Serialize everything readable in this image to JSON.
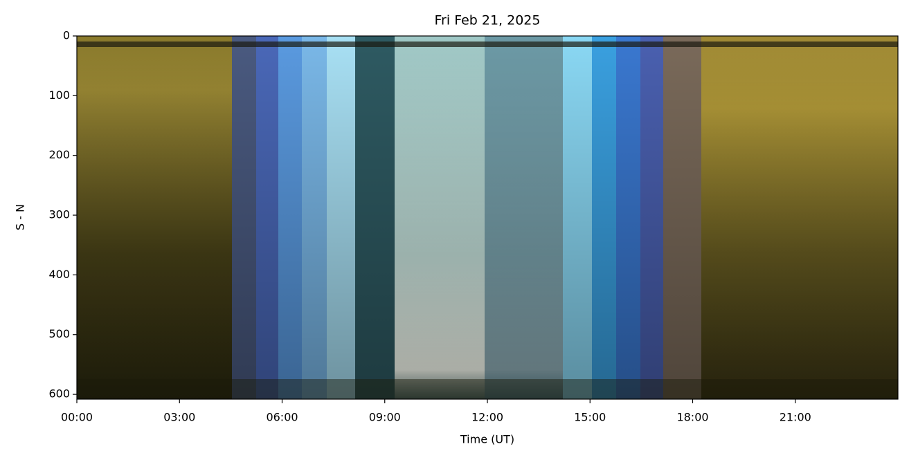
{
  "chart_data": {
    "type": "image",
    "title": "Fri Feb 21, 2025",
    "xlabel": "Time (UT)",
    "ylabel": "S - N",
    "xlim": [
      0,
      24
    ],
    "xticks": [
      {
        "value": 0,
        "label": "00:00"
      },
      {
        "value": 3,
        "label": "03:00"
      },
      {
        "value": 6,
        "label": "06:00"
      },
      {
        "value": 9,
        "label": "09:00"
      },
      {
        "value": 12,
        "label": "12:00"
      },
      {
        "value": 15,
        "label": "15:00"
      },
      {
        "value": 18,
        "label": "18:00"
      },
      {
        "value": 21,
        "label": "21:00"
      }
    ],
    "ylim": [
      608,
      0
    ],
    "yticks": [
      0,
      100,
      200,
      300,
      400,
      500,
      600
    ]
  }
}
